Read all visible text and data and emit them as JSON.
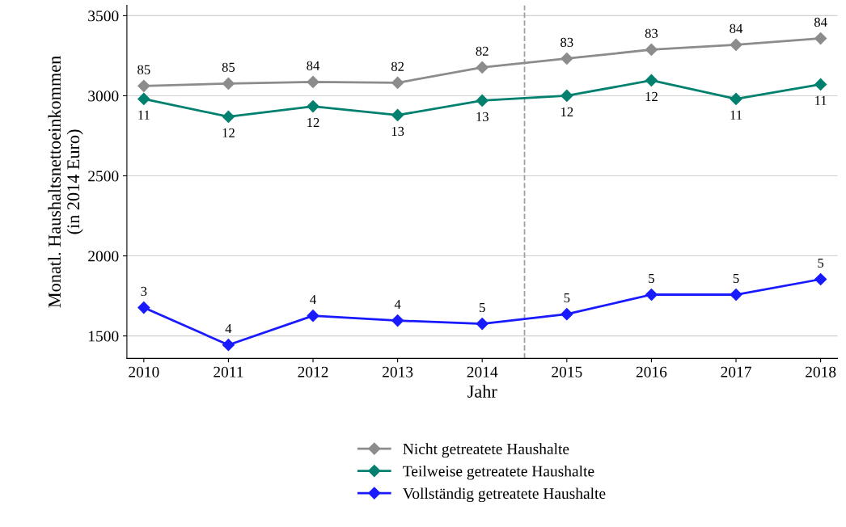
{
  "chart_data": {
    "type": "line",
    "xlabel": "Jahr",
    "ylabel": "Monatl. Haushaltsnettoeinkommen\n(in 2014 Euro)",
    "x": [
      2010,
      2011,
      2012,
      2013,
      2014,
      2015,
      2016,
      2017,
      2018
    ],
    "xlim": [
      2009.8,
      2018.2
    ],
    "xticks": [
      2010,
      2011,
      2012,
      2013,
      2014,
      2015,
      2016,
      2017,
      2018
    ],
    "ylim": [
      1360,
      3565
    ],
    "yticks": [
      1500,
      2000,
      2500,
      3000,
      3500
    ],
    "grid": "y",
    "legend": "bottom",
    "marker": "diamond",
    "line_style": "solid",
    "ref_lines": [
      {
        "axis": "x",
        "value": 2014.5,
        "color": "#a0a0a0",
        "line_style": "dashed"
      }
    ],
    "series": [
      {
        "name": "Nicht getreatete Haushalte",
        "color": "#8c8c8c",
        "values": [
          3061,
          3076,
          3086,
          3081,
          3177,
          3232,
          3288,
          3318,
          3358
        ]
      },
      {
        "name": "Teilweise getreatete Haushalte",
        "color": "#00806e",
        "values": [
          2980,
          2869,
          2934,
          2879,
          2970,
          3000,
          3096,
          2980,
          3071
        ]
      },
      {
        "name": "Vollständig getreatete Haushalte",
        "color": "#1a1aff",
        "values": [
          1677,
          1444,
          1626,
          1596,
          1576,
          1636,
          1758,
          1758,
          1854
        ]
      }
    ],
    "annotations": [
      {
        "text": "85",
        "x": 2010,
        "y": 3061
      },
      {
        "text": "85",
        "x": 2011,
        "y": 3076
      },
      {
        "text": "84",
        "x": 2012,
        "y": 3086
      },
      {
        "text": "82",
        "x": 2013,
        "y": 3081
      },
      {
        "text": "82",
        "x": 2014,
        "y": 3177
      },
      {
        "text": "83",
        "x": 2015,
        "y": 3232
      },
      {
        "text": "83",
        "x": 2016,
        "y": 3288
      },
      {
        "text": "84",
        "x": 2017,
        "y": 3318
      },
      {
        "text": "84",
        "x": 2018,
        "y": 3358
      },
      {
        "text": "11",
        "x": 2010,
        "y": 2980
      },
      {
        "text": "12",
        "x": 2011,
        "y": 2869
      },
      {
        "text": "12",
        "x": 2012,
        "y": 2934
      },
      {
        "text": "13",
        "x": 2013,
        "y": 2879
      },
      {
        "text": "13",
        "x": 2014,
        "y": 2970
      },
      {
        "text": "12",
        "x": 2015,
        "y": 3000
      },
      {
        "text": "12",
        "x": 2016,
        "y": 3096
      },
      {
        "text": "11",
        "x": 2017,
        "y": 2980
      },
      {
        "text": "11",
        "x": 2018,
        "y": 3071
      },
      {
        "text": "3",
        "x": 2010,
        "y": 1677
      },
      {
        "text": "4",
        "x": 2011,
        "y": 1444
      },
      {
        "text": "4",
        "x": 2012,
        "y": 1626
      },
      {
        "text": "4",
        "x": 2013,
        "y": 1596
      },
      {
        "text": "5",
        "x": 2014,
        "y": 1576
      },
      {
        "text": "5",
        "x": 2015,
        "y": 1636
      },
      {
        "text": "5",
        "x": 2016,
        "y": 1758
      },
      {
        "text": "5",
        "x": 2017,
        "y": 1758
      },
      {
        "text": "5",
        "x": 2018,
        "y": 1854
      }
    ]
  }
}
